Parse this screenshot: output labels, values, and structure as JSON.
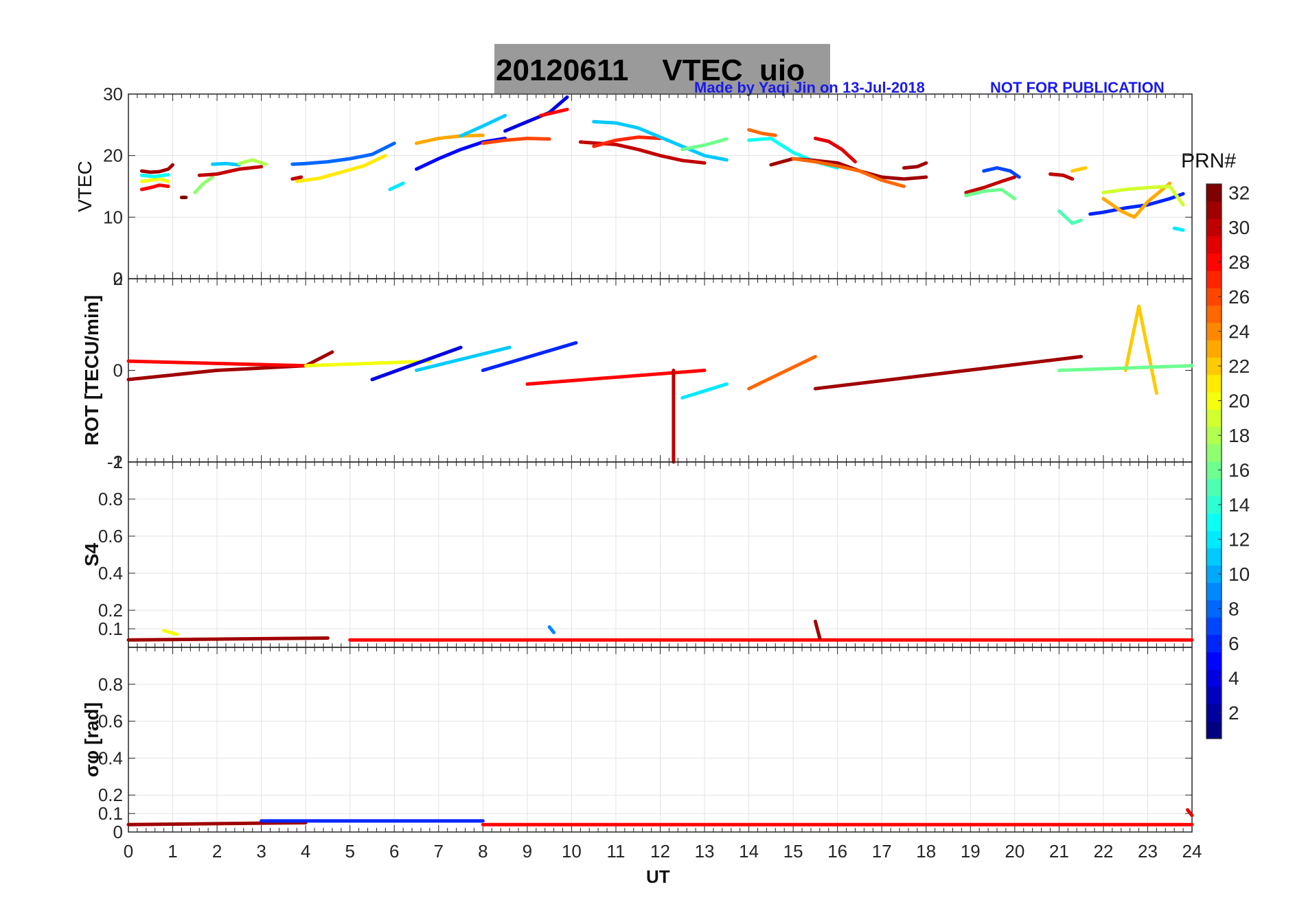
{
  "title": {
    "date": "20120611",
    "name": "VTEC  uio",
    "credit": "Made by Yaqi Jin on 13-Jul-2018",
    "notice": "NOT FOR PUBLICATION"
  },
  "x_axis": {
    "label": "UT",
    "range": [
      0,
      24
    ],
    "ticks": [
      "0",
      "1",
      "2",
      "3",
      "4",
      "5",
      "6",
      "7",
      "8",
      "9",
      "10",
      "11",
      "12",
      "13",
      "14",
      "15",
      "16",
      "17",
      "18",
      "19",
      "20",
      "21",
      "22",
      "23",
      "24"
    ]
  },
  "colorbar": {
    "label": "PRN#",
    "range": [
      1,
      32
    ],
    "ticks": [
      "2",
      "4",
      "6",
      "8",
      "10",
      "12",
      "14",
      "16",
      "18",
      "20",
      "22",
      "24",
      "26",
      "28",
      "30",
      "32"
    ],
    "colormap": "jet"
  },
  "panels": [
    {
      "id": "vtec",
      "ylabel": "VTEC",
      "ylim": [
        0,
        30
      ],
      "ticks": [
        "10",
        "20",
        "30"
      ],
      "overlap_label": "0"
    },
    {
      "id": "rot",
      "ylabel": "ROT [TECU/min]",
      "ylim": [
        -2,
        2
      ],
      "ticks": [
        "-2",
        "0",
        "2"
      ],
      "overlap_label": "-1"
    },
    {
      "id": "s4",
      "ylabel": "S4",
      "ylim": [
        0,
        1
      ],
      "ticks": [
        "0.1",
        "0.2",
        "0.4",
        "0.6",
        "0.8",
        "1"
      ]
    },
    {
      "id": "sigma",
      "ylabel": "σφ [rad]",
      "ylim": [
        0,
        1
      ],
      "ticks": [
        "0",
        "0.1",
        "0.2",
        "0.4",
        "0.6",
        "0.8"
      ]
    }
  ],
  "chart_data": [
    {
      "type": "scatter",
      "title": "20120611    VTEC  uio",
      "xlabel": "UT",
      "ylabel": "VTEC",
      "xlim": [
        0,
        24
      ],
      "ylim": [
        0,
        30
      ],
      "grid": true,
      "series": [
        {
          "prn": 31,
          "x": [
            0.3,
            0.5,
            0.7,
            0.9,
            1.0
          ],
          "y": [
            17.5,
            17.3,
            17.4,
            17.8,
            18.5
          ]
        },
        {
          "prn": 28,
          "x": [
            0.3,
            0.5,
            0.7,
            0.9
          ],
          "y": [
            14.5,
            14.8,
            15.2,
            15.0
          ]
        },
        {
          "prn": 20,
          "x": [
            0.3,
            0.5,
            0.7,
            0.9
          ],
          "y": [
            15.8,
            16.0,
            16.2,
            15.8
          ]
        },
        {
          "prn": 13,
          "x": [
            0.3,
            0.6,
            0.9
          ],
          "y": [
            16.8,
            16.6,
            16.9
          ]
        },
        {
          "prn": 32,
          "x": [
            1.2,
            1.3
          ],
          "y": [
            13.2,
            13.2
          ]
        },
        {
          "prn": 17,
          "x": [
            1.5,
            1.7,
            1.9
          ],
          "y": [
            14.0,
            15.5,
            16.5
          ]
        },
        {
          "prn": 30,
          "x": [
            1.6,
            2.0,
            2.5,
            3.0
          ],
          "y": [
            16.8,
            17.0,
            17.8,
            18.2
          ]
        },
        {
          "prn": 11,
          "x": [
            1.9,
            2.2,
            2.5
          ],
          "y": [
            18.6,
            18.7,
            18.5
          ]
        },
        {
          "prn": 18,
          "x": [
            2.5,
            2.8,
            3.1
          ],
          "y": [
            18.7,
            19.3,
            18.6
          ]
        },
        {
          "prn": 30,
          "x": [
            3.7,
            3.9
          ],
          "y": [
            16.2,
            16.5
          ]
        },
        {
          "prn": 8,
          "x": [
            3.7,
            4.0,
            4.5,
            5.0,
            5.5,
            6.0
          ],
          "y": [
            18.6,
            18.7,
            19.0,
            19.5,
            20.2,
            22.0
          ]
        },
        {
          "prn": 21,
          "x": [
            3.8,
            4.3,
            4.8,
            5.3,
            5.8
          ],
          "y": [
            15.8,
            16.3,
            17.3,
            18.3,
            20.0
          ]
        },
        {
          "prn": 12,
          "x": [
            5.9,
            6.2
          ],
          "y": [
            14.5,
            15.5
          ]
        },
        {
          "prn": 5,
          "x": [
            6.5,
            7.0,
            7.5,
            8.0,
            8.5
          ],
          "y": [
            17.8,
            19.5,
            21.0,
            22.2,
            22.8
          ]
        },
        {
          "prn": 23,
          "x": [
            6.5,
            7.0,
            7.5,
            8.0
          ],
          "y": [
            22.0,
            22.8,
            23.2,
            23.3
          ]
        },
        {
          "prn": 11,
          "x": [
            7.5,
            8.0,
            8.5
          ],
          "y": [
            23.2,
            24.8,
            26.5
          ]
        },
        {
          "prn": 26,
          "x": [
            8.0,
            8.5,
            9.0,
            9.5
          ],
          "y": [
            22.0,
            22.5,
            22.8,
            22.7
          ]
        },
        {
          "prn": 4,
          "x": [
            8.5,
            9.0,
            9.5,
            9.9
          ],
          "y": [
            24.0,
            25.5,
            27.0,
            29.5
          ]
        },
        {
          "prn": 28,
          "x": [
            9.3,
            9.6,
            9.9
          ],
          "y": [
            26.5,
            27.0,
            27.5
          ]
        },
        {
          "prn": 30,
          "x": [
            10.2,
            10.6,
            11.0,
            11.5,
            12.0,
            12.5,
            13.0
          ],
          "y": [
            22.2,
            22.0,
            21.8,
            21.0,
            20.0,
            19.2,
            18.8
          ]
        },
        {
          "prn": 27,
          "x": [
            10.5,
            11.0,
            11.5,
            12.0
          ],
          "y": [
            21.5,
            22.5,
            23.0,
            22.8
          ]
        },
        {
          "prn": 11,
          "x": [
            10.5,
            11.0,
            11.5,
            12.0,
            12.5,
            13.0,
            13.5
          ],
          "y": [
            25.5,
            25.3,
            24.5,
            23.0,
            21.5,
            20.0,
            19.3
          ]
        },
        {
          "prn": 16,
          "x": [
            12.5,
            13.0,
            13.5
          ],
          "y": [
            21.0,
            21.7,
            22.7
          ]
        },
        {
          "prn": 25,
          "x": [
            14.0,
            14.3,
            14.6
          ],
          "y": [
            24.2,
            23.6,
            23.3
          ]
        },
        {
          "prn": 13,
          "x": [
            14.0,
            14.5,
            15.0,
            15.5,
            16.0
          ],
          "y": [
            22.5,
            22.8,
            20.5,
            19.0,
            18.0
          ]
        },
        {
          "prn": 29,
          "x": [
            15.5,
            15.8,
            16.1,
            16.4
          ],
          "y": [
            22.8,
            22.3,
            21.0,
            19.0
          ]
        },
        {
          "prn": 31,
          "x": [
            14.5,
            15.0,
            15.5,
            16.0,
            16.5,
            17.0,
            17.5,
            18.0
          ],
          "y": [
            18.5,
            19.5,
            19.2,
            18.8,
            17.5,
            16.5,
            16.2,
            16.5
          ]
        },
        {
          "prn": 25,
          "x": [
            15.0,
            15.5,
            16.0,
            16.5,
            17.0,
            17.5
          ],
          "y": [
            19.5,
            19.0,
            18.3,
            17.5,
            16.0,
            15.0
          ]
        },
        {
          "prn": 31,
          "x": [
            17.5,
            17.8,
            18.0
          ],
          "y": [
            18.0,
            18.2,
            18.8
          ]
        },
        {
          "prn": 7,
          "x": [
            19.3,
            19.6,
            19.9,
            20.1
          ],
          "y": [
            17.5,
            18.0,
            17.5,
            16.5
          ]
        },
        {
          "prn": 30,
          "x": [
            18.9,
            19.3,
            19.7,
            20.0
          ],
          "y": [
            14.0,
            14.8,
            15.8,
            16.5
          ]
        },
        {
          "prn": 16,
          "x": [
            18.9,
            19.3,
            19.7,
            20.0
          ],
          "y": [
            13.5,
            14.2,
            14.5,
            13.0
          ]
        },
        {
          "prn": 30,
          "x": [
            20.8,
            21.1,
            21.3
          ],
          "y": [
            17.0,
            16.8,
            16.2
          ]
        },
        {
          "prn": 15,
          "x": [
            21.0,
            21.3,
            21.5
          ],
          "y": [
            11.0,
            9.0,
            9.5
          ]
        },
        {
          "prn": 22,
          "x": [
            21.3,
            21.6
          ],
          "y": [
            17.5,
            18.0
          ]
        },
        {
          "prn": 6,
          "x": [
            21.7,
            22.0,
            22.5,
            23.0,
            23.5,
            23.8
          ],
          "y": [
            10.5,
            10.8,
            11.5,
            12.0,
            13.0,
            13.8
          ]
        },
        {
          "prn": 23,
          "x": [
            22.0,
            22.4,
            22.7,
            23.0,
            23.5
          ],
          "y": [
            13.0,
            11.0,
            10.0,
            12.5,
            15.5
          ]
        },
        {
          "prn": 19,
          "x": [
            22.0,
            22.5,
            23.0,
            23.5,
            23.8
          ],
          "y": [
            14.0,
            14.5,
            14.8,
            15.0,
            12.0
          ]
        },
        {
          "prn": 12,
          "x": [
            23.6,
            23.8
          ],
          "y": [
            8.2,
            7.9
          ]
        }
      ]
    },
    {
      "type": "line",
      "ylabel": "ROT [TECU/min]",
      "xlim": [
        0,
        24
      ],
      "ylim": [
        -2,
        2
      ],
      "grid": false,
      "series": [
        {
          "prn": 31,
          "x": [
            0,
            2,
            4,
            4.6
          ],
          "y": [
            -0.2,
            0,
            0.1,
            0.4
          ]
        },
        {
          "prn": 28,
          "x": [
            0,
            4
          ],
          "y": [
            0.2,
            0.1
          ]
        },
        {
          "prn": 20,
          "x": [
            4,
            6.8
          ],
          "y": [
            0.1,
            0.2
          ]
        },
        {
          "prn": 11,
          "x": [
            6.5,
            8.6
          ],
          "y": [
            0,
            0.5
          ]
        },
        {
          "prn": 6,
          "x": [
            8,
            10.1
          ],
          "y": [
            0,
            0.6
          ]
        },
        {
          "prn": 4,
          "x": [
            5.5,
            7.5
          ],
          "y": [
            -0.2,
            0.5
          ]
        },
        {
          "prn": 28,
          "x": [
            9.0,
            13.0
          ],
          "y": [
            -0.3,
            0
          ]
        },
        {
          "prn": 30,
          "x": [
            12.3,
            12.3
          ],
          "y": [
            0,
            -2
          ]
        },
        {
          "prn": 12,
          "x": [
            12.5,
            13.5
          ],
          "y": [
            -0.6,
            -0.3
          ]
        },
        {
          "prn": 25,
          "x": [
            14,
            15.5
          ],
          "y": [
            -0.4,
            0.3
          ]
        },
        {
          "prn": 31,
          "x": [
            15.5,
            21.5
          ],
          "y": [
            -0.4,
            0.3
          ]
        },
        {
          "prn": 22,
          "x": [
            22.5,
            22.8,
            23.2
          ],
          "y": [
            0,
            1.4,
            -0.5
          ]
        },
        {
          "prn": 16,
          "x": [
            21.0,
            24
          ],
          "y": [
            0,
            0.1
          ]
        }
      ]
    },
    {
      "type": "line",
      "ylabel": "S4",
      "xlim": [
        0,
        24
      ],
      "ylim": [
        0,
        1
      ],
      "grid": true,
      "series": [
        {
          "prn": 31,
          "x": [
            0,
            4.5
          ],
          "y": [
            0.04,
            0.05
          ]
        },
        {
          "prn": 20,
          "x": [
            0.8,
            1.1
          ],
          "y": [
            0.09,
            0.07
          ]
        },
        {
          "prn": 9,
          "x": [
            9.5,
            9.6
          ],
          "y": [
            0.11,
            0.08
          ]
        },
        {
          "prn": 28,
          "x": [
            5,
            24
          ],
          "y": [
            0.04,
            0.04
          ]
        },
        {
          "prn": 31,
          "x": [
            15.5,
            15.6
          ],
          "y": [
            0.14,
            0.05
          ]
        }
      ]
    },
    {
      "type": "line",
      "ylabel": "σφ [rad]",
      "xlim": [
        0,
        24
      ],
      "ylim": [
        0,
        1
      ],
      "grid": true,
      "series": [
        {
          "prn": 31,
          "x": [
            0,
            4
          ],
          "y": [
            0.04,
            0.05
          ]
        },
        {
          "prn": 6,
          "x": [
            3,
            8
          ],
          "y": [
            0.06,
            0.06
          ]
        },
        {
          "prn": 28,
          "x": [
            8,
            24
          ],
          "y": [
            0.04,
            0.04
          ]
        },
        {
          "prn": 29,
          "x": [
            23.9,
            24
          ],
          "y": [
            0.12,
            0.09
          ]
        }
      ]
    }
  ]
}
